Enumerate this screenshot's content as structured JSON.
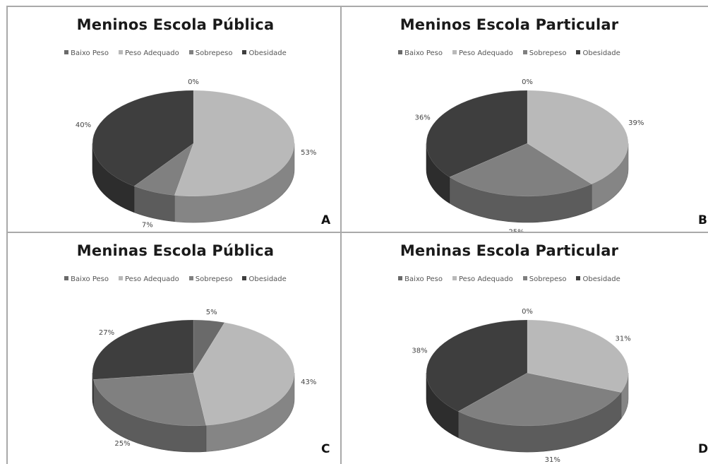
{
  "chart_data": [
    {
      "type": "pie",
      "title": "Meninos Escola Pública",
      "panel_label": "A",
      "categories": [
        "Baixo Peso",
        "Peso Adequado",
        "Sobrepeso",
        "Obesidade"
      ],
      "values": [
        0,
        53,
        7,
        40
      ],
      "value_labels": [
        "0%",
        "53%",
        "7%",
        "40%"
      ],
      "legend_position": "top"
    },
    {
      "type": "pie",
      "title": "Meninos Escola Particular",
      "panel_label": "B",
      "categories": [
        "Baixo Peso",
        "Peso Adequado",
        "Sobrepeso",
        "Obesidade"
      ],
      "values": [
        0,
        39,
        25,
        36
      ],
      "value_labels": [
        "0%",
        "39%",
        "25%",
        "36%"
      ],
      "legend_position": "top"
    },
    {
      "type": "pie",
      "title": "Meninas Escola Pública",
      "panel_label": "C",
      "categories": [
        "Baixo Peso",
        "Peso Adequado",
        "Sobrepeso",
        "Obesidade"
      ],
      "values": [
        5,
        43,
        25,
        27
      ],
      "value_labels": [
        "5%",
        "43%",
        "25%",
        "27%"
      ],
      "legend_position": "top"
    },
    {
      "type": "pie",
      "title": "Meninas Escola Particular",
      "panel_label": "D",
      "categories": [
        "Baixo Peso",
        "Peso Adequado",
        "Sobrepeso",
        "Obesidade"
      ],
      "values": [
        0,
        31,
        31,
        38
      ],
      "value_labels": [
        "0%",
        "31%",
        "31%",
        "38%"
      ],
      "legend_position": "top"
    }
  ],
  "colors": {
    "Baixo Peso": "#6a6a6a",
    "Peso Adequado": "#b9b9b9",
    "Sobrepeso": "#808080",
    "Obesidade": "#3e3e3e"
  }
}
